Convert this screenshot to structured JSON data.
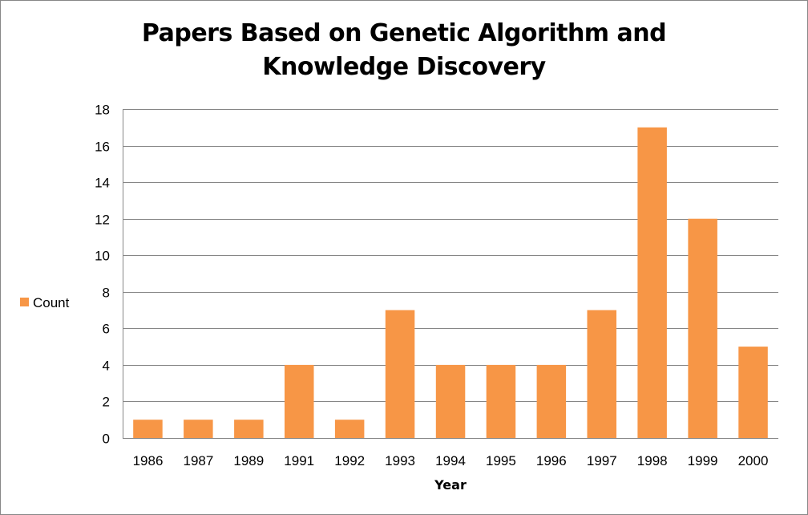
{
  "chart_data": {
    "type": "bar",
    "title_line1": "Papers Based on Genetic Algorithm and",
    "title_line2": "Knowledge Discovery",
    "xlabel": "Year",
    "ylabel": "",
    "categories": [
      "1986",
      "1987",
      "1989",
      "1991",
      "1992",
      "1993",
      "1994",
      "1995",
      "1996",
      "1997",
      "1998",
      "1999",
      "2000"
    ],
    "series": [
      {
        "name": "Count",
        "color": "#F79646",
        "values": [
          1,
          1,
          1,
          4,
          1,
          7,
          4,
          4,
          4,
          7,
          17,
          12,
          5
        ]
      }
    ],
    "ylim": [
      0,
      18
    ],
    "yticks": [
      0,
      2,
      4,
      6,
      8,
      10,
      12,
      14,
      16,
      18
    ],
    "grid": true,
    "legend_position": "left",
    "colors": {
      "bar": "#F79646",
      "gridline": "#868686",
      "axis": "#868686",
      "border": "#878787"
    }
  }
}
